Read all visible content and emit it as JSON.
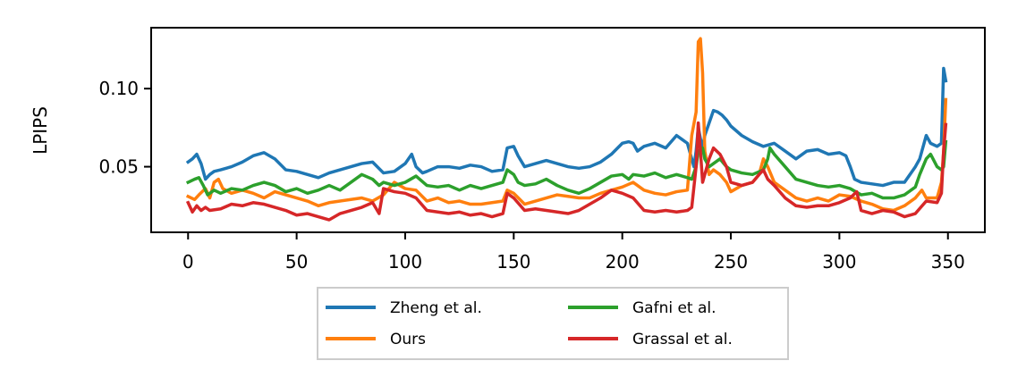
{
  "chart_data": {
    "type": "line",
    "title": "",
    "xlabel": "",
    "ylabel": "LPIPS",
    "xlim": [
      -17,
      367
    ],
    "ylim": [
      0.008,
      0.139
    ],
    "xticks": [
      0,
      50,
      100,
      150,
      200,
      250,
      300,
      350
    ],
    "yticks": [
      0.05,
      0.1
    ],
    "ytick_labels": [
      "0.05",
      "0.10"
    ],
    "grid": false,
    "legend": {
      "position": "below-center",
      "columns": 2,
      "entries": [
        "Zheng et al.",
        "Ours",
        "Gafni et al.",
        "Grassal et al."
      ]
    },
    "series": [
      {
        "name": "Zheng et al.",
        "color": "#1f77b4",
        "x": [
          0,
          2,
          4,
          6,
          8,
          10,
          12,
          15,
          20,
          25,
          30,
          35,
          40,
          45,
          50,
          55,
          60,
          65,
          70,
          75,
          80,
          85,
          90,
          95,
          100,
          103,
          105,
          108,
          110,
          115,
          120,
          125,
          130,
          135,
          140,
          145,
          147,
          150,
          152,
          155,
          160,
          165,
          170,
          175,
          180,
          185,
          190,
          195,
          200,
          203,
          205,
          207,
          210,
          215,
          220,
          225,
          230,
          233,
          234,
          235,
          236,
          237,
          238,
          240,
          242,
          244,
          246,
          248,
          250,
          255,
          260,
          265,
          270,
          275,
          280,
          285,
          290,
          295,
          300,
          303,
          305,
          307,
          310,
          315,
          320,
          325,
          330,
          335,
          337,
          340,
          342,
          345,
          347,
          348,
          349
        ],
        "values": [
          0.053,
          0.055,
          0.058,
          0.052,
          0.042,
          0.045,
          0.047,
          0.048,
          0.05,
          0.053,
          0.057,
          0.059,
          0.055,
          0.048,
          0.047,
          0.045,
          0.043,
          0.046,
          0.048,
          0.05,
          0.052,
          0.053,
          0.046,
          0.047,
          0.052,
          0.058,
          0.05,
          0.046,
          0.047,
          0.05,
          0.05,
          0.049,
          0.051,
          0.05,
          0.047,
          0.048,
          0.062,
          0.063,
          0.057,
          0.05,
          0.052,
          0.054,
          0.052,
          0.05,
          0.049,
          0.05,
          0.053,
          0.058,
          0.065,
          0.066,
          0.065,
          0.06,
          0.063,
          0.065,
          0.062,
          0.07,
          0.065,
          0.05,
          0.06,
          0.075,
          0.068,
          0.062,
          0.07,
          0.078,
          0.086,
          0.085,
          0.083,
          0.08,
          0.076,
          0.07,
          0.066,
          0.063,
          0.065,
          0.06,
          0.055,
          0.06,
          0.061,
          0.058,
          0.059,
          0.057,
          0.05,
          0.042,
          0.04,
          0.039,
          0.038,
          0.04,
          0.04,
          0.05,
          0.055,
          0.07,
          0.065,
          0.063,
          0.065,
          0.113,
          0.105
        ]
      },
      {
        "name": "Ours",
        "color": "#ff7f0e",
        "x": [
          0,
          3,
          5,
          8,
          10,
          12,
          14,
          16,
          20,
          25,
          30,
          35,
          40,
          45,
          50,
          55,
          60,
          65,
          70,
          75,
          80,
          85,
          90,
          95,
          100,
          105,
          110,
          115,
          120,
          125,
          130,
          135,
          140,
          145,
          147,
          150,
          155,
          160,
          165,
          170,
          175,
          180,
          185,
          190,
          195,
          200,
          205,
          210,
          215,
          220,
          225,
          230,
          232,
          234,
          235,
          236,
          237,
          238,
          240,
          242,
          245,
          248,
          250,
          255,
          260,
          263,
          265,
          267,
          270,
          275,
          280,
          285,
          290,
          295,
          300,
          305,
          310,
          315,
          320,
          325,
          330,
          335,
          338,
          340,
          345,
          347,
          348,
          349
        ],
        "values": [
          0.031,
          0.029,
          0.032,
          0.036,
          0.03,
          0.04,
          0.042,
          0.036,
          0.033,
          0.035,
          0.033,
          0.03,
          0.034,
          0.032,
          0.03,
          0.028,
          0.025,
          0.027,
          0.028,
          0.029,
          0.03,
          0.028,
          0.032,
          0.04,
          0.036,
          0.035,
          0.028,
          0.03,
          0.027,
          0.028,
          0.026,
          0.026,
          0.027,
          0.028,
          0.035,
          0.033,
          0.026,
          0.028,
          0.03,
          0.032,
          0.031,
          0.03,
          0.03,
          0.033,
          0.035,
          0.037,
          0.04,
          0.035,
          0.033,
          0.032,
          0.034,
          0.035,
          0.07,
          0.085,
          0.13,
          0.132,
          0.11,
          0.06,
          0.045,
          0.048,
          0.045,
          0.04,
          0.034,
          0.038,
          0.04,
          0.045,
          0.055,
          0.05,
          0.04,
          0.035,
          0.03,
          0.028,
          0.03,
          0.028,
          0.032,
          0.031,
          0.028,
          0.026,
          0.023,
          0.022,
          0.025,
          0.03,
          0.035,
          0.03,
          0.03,
          0.04,
          0.06,
          0.093
        ]
      },
      {
        "name": "Gafni et al.",
        "color": "#2ca02c",
        "x": [
          0,
          3,
          5,
          7,
          9,
          12,
          15,
          20,
          25,
          30,
          35,
          40,
          45,
          50,
          55,
          60,
          65,
          70,
          75,
          80,
          85,
          88,
          90,
          95,
          100,
          105,
          110,
          115,
          120,
          125,
          130,
          135,
          140,
          145,
          147,
          150,
          152,
          155,
          160,
          165,
          170,
          175,
          180,
          185,
          190,
          195,
          200,
          203,
          205,
          210,
          215,
          220,
          225,
          230,
          232,
          234,
          235,
          237,
          238,
          240,
          242,
          245,
          248,
          250,
          255,
          260,
          265,
          267,
          268,
          270,
          275,
          280,
          285,
          290,
          295,
          300,
          305,
          310,
          315,
          320,
          325,
          330,
          335,
          337,
          340,
          342,
          345,
          347,
          348,
          349
        ],
        "values": [
          0.04,
          0.042,
          0.043,
          0.038,
          0.032,
          0.035,
          0.033,
          0.036,
          0.035,
          0.038,
          0.04,
          0.038,
          0.034,
          0.036,
          0.033,
          0.035,
          0.038,
          0.035,
          0.04,
          0.045,
          0.042,
          0.038,
          0.04,
          0.038,
          0.04,
          0.044,
          0.038,
          0.037,
          0.038,
          0.035,
          0.038,
          0.036,
          0.038,
          0.04,
          0.048,
          0.045,
          0.04,
          0.038,
          0.039,
          0.042,
          0.038,
          0.035,
          0.033,
          0.036,
          0.04,
          0.044,
          0.045,
          0.042,
          0.045,
          0.044,
          0.046,
          0.043,
          0.045,
          0.043,
          0.042,
          0.05,
          0.06,
          0.062,
          0.055,
          0.05,
          0.052,
          0.055,
          0.05,
          0.048,
          0.046,
          0.045,
          0.048,
          0.055,
          0.062,
          0.058,
          0.05,
          0.042,
          0.04,
          0.038,
          0.037,
          0.038,
          0.036,
          0.032,
          0.033,
          0.03,
          0.03,
          0.032,
          0.037,
          0.045,
          0.055,
          0.058,
          0.05,
          0.048,
          0.05,
          0.066
        ]
      },
      {
        "name": "Grassal et al.",
        "color": "#d62728",
        "x": [
          0,
          2,
          4,
          6,
          8,
          10,
          15,
          20,
          25,
          30,
          35,
          40,
          45,
          50,
          55,
          60,
          65,
          70,
          75,
          80,
          85,
          88,
          90,
          95,
          100,
          105,
          110,
          115,
          120,
          125,
          130,
          135,
          140,
          145,
          147,
          150,
          155,
          160,
          165,
          170,
          175,
          180,
          185,
          190,
          195,
          200,
          205,
          210,
          215,
          220,
          225,
          230,
          232,
          234,
          235,
          236,
          237,
          238,
          240,
          242,
          245,
          248,
          250,
          255,
          260,
          263,
          265,
          267,
          270,
          275,
          280,
          285,
          290,
          295,
          300,
          305,
          308,
          310,
          315,
          320,
          325,
          330,
          335,
          340,
          345,
          347,
          348,
          349
        ],
        "values": [
          0.027,
          0.021,
          0.025,
          0.022,
          0.024,
          0.022,
          0.023,
          0.026,
          0.025,
          0.027,
          0.026,
          0.024,
          0.022,
          0.019,
          0.02,
          0.018,
          0.016,
          0.02,
          0.022,
          0.024,
          0.027,
          0.02,
          0.036,
          0.034,
          0.033,
          0.03,
          0.022,
          0.021,
          0.02,
          0.021,
          0.019,
          0.02,
          0.018,
          0.02,
          0.033,
          0.03,
          0.022,
          0.023,
          0.022,
          0.021,
          0.02,
          0.022,
          0.026,
          0.03,
          0.035,
          0.033,
          0.03,
          0.022,
          0.021,
          0.022,
          0.021,
          0.022,
          0.024,
          0.05,
          0.078,
          0.06,
          0.04,
          0.045,
          0.055,
          0.062,
          0.058,
          0.05,
          0.04,
          0.038,
          0.04,
          0.045,
          0.048,
          0.042,
          0.038,
          0.03,
          0.025,
          0.024,
          0.025,
          0.025,
          0.027,
          0.03,
          0.034,
          0.022,
          0.02,
          0.022,
          0.021,
          0.018,
          0.02,
          0.028,
          0.027,
          0.033,
          0.06,
          0.077
        ]
      }
    ]
  }
}
